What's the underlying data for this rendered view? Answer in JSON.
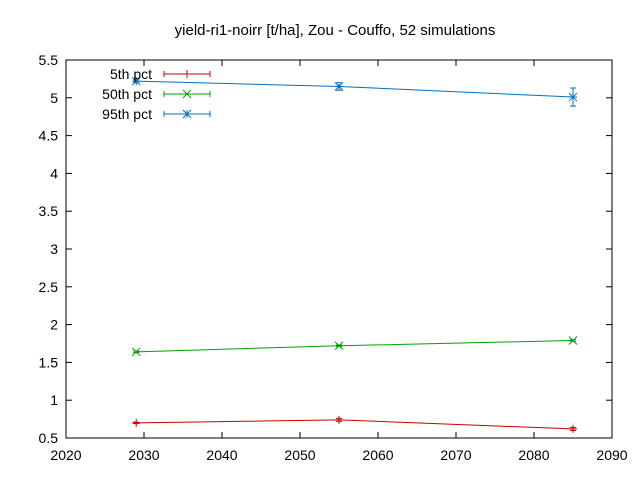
{
  "chart_data": {
    "type": "line",
    "title": "yield-ri1-noirr [t/ha], Zou - Couffo, 52 simulations",
    "xlabel": "",
    "ylabel": "",
    "xlim": [
      2020,
      2090
    ],
    "ylim": [
      0.5,
      5.5
    ],
    "xticks": [
      2020,
      2030,
      2040,
      2050,
      2060,
      2070,
      2080,
      2090
    ],
    "yticks": [
      0.5,
      1,
      1.5,
      2,
      2.5,
      3,
      3.5,
      4,
      4.5,
      5,
      5.5
    ],
    "xtick_labels": [
      "2020",
      "2030",
      "2040",
      "2050",
      "2060",
      "2070",
      "2080",
      "2090"
    ],
    "ytick_labels": [
      "0.5",
      "1",
      "1.5",
      "2",
      "2.5",
      "3",
      "3.5",
      "4",
      "4.5",
      "5",
      "5.5"
    ],
    "grid": false,
    "legend_position": "top-left",
    "x": [
      2029,
      2055,
      2085
    ],
    "series": [
      {
        "name": "5th pct",
        "values": [
          0.7,
          0.74,
          0.62
        ],
        "errors": [
          0.01,
          0.02,
          0.02
        ],
        "color": "#cc0000",
        "marker": "plus"
      },
      {
        "name": "50th pct",
        "values": [
          1.64,
          1.72,
          1.79
        ],
        "errors": [
          0.01,
          0.01,
          0.01
        ],
        "color": "#00a000",
        "marker": "cross"
      },
      {
        "name": "95th pct",
        "values": [
          5.22,
          5.15,
          5.01
        ],
        "errors": [
          0.02,
          0.05,
          0.12
        ],
        "color": "#0070c0",
        "marker": "star"
      }
    ]
  }
}
